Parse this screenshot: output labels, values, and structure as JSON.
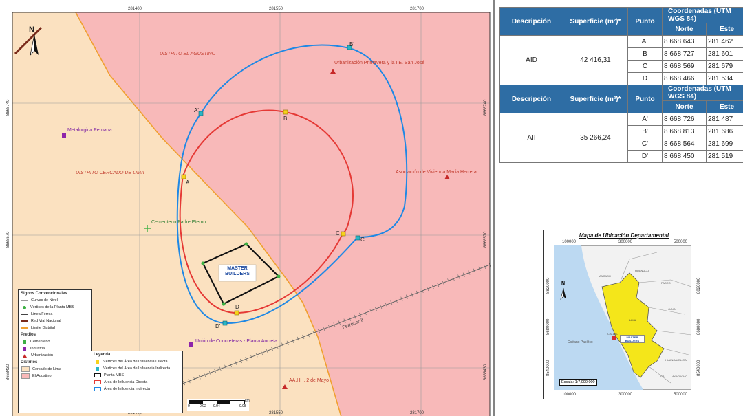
{
  "map": {
    "north_label": "N",
    "x_ticks": [
      "281400",
      "281550",
      "281700"
    ],
    "y_ticks": [
      "8668740",
      "8668570",
      "8668430"
    ],
    "district_labels": {
      "agustino": "DISTRITO EL AGUSTINO",
      "lima": "DISTRITO CERCADO DE LIMA"
    },
    "places": {
      "urbanizacion_primavera": "Urbanización Primavera y la I.E. San José",
      "metalurgica": "Metalurgica Peruana",
      "asociacion": "Asociación de Vivienda María Herrera",
      "cementerio": "Cementerio Padre Eterno",
      "union": "Unión de Concreteras - Planta Ancieta",
      "aahh": "AA.HH. 2 de Mayo",
      "ferrocarril": "Ferrocarril"
    },
    "points": {
      "A": "A",
      "B": "B",
      "C": "C",
      "D": "D",
      "A2": "A'",
      "B2": "B'",
      "C2": "C'",
      "D2": "D'"
    },
    "logo_line1": "MASTER",
    "logo_line2": "BUILDERS",
    "scale_labels": [
      "0",
      "0.02",
      "0.04",
      "0.08"
    ],
    "scale_unit": "km",
    "colors": {
      "agustino_fill": "#f8b9b9",
      "lima_fill": "#fbe1c0",
      "aid_line": "#e53935",
      "aii_line": "#1e88e5",
      "plant_line": "#111111",
      "district_line": "#f0a030"
    }
  },
  "signos": {
    "title": "Signos Convencionales",
    "items": [
      {
        "label": "Curvas de Nivel",
        "icon": "contour-line-icon"
      },
      {
        "label": "Vértices de la Planta MBS",
        "icon": "green-vertex-icon"
      },
      {
        "label": "Línea Férrea",
        "icon": "railway-icon"
      },
      {
        "label": "Red Vial Nacional",
        "icon": "road-icon"
      },
      {
        "label": "Límite Distrital",
        "icon": "district-limit-icon"
      }
    ],
    "predios_title": "Predios",
    "predios": [
      {
        "label": "Cementerio",
        "icon": "cemetery-icon"
      },
      {
        "label": "Industria",
        "icon": "industry-icon"
      },
      {
        "label": "Urbanización",
        "icon": "urbanization-icon"
      }
    ],
    "distritos_title": "Distritos",
    "distritos": [
      {
        "label": "Cercado de Lima",
        "color": "#fbe1c0"
      },
      {
        "label": "El Agustino",
        "color": "#f8b9b9"
      }
    ]
  },
  "leyenda": {
    "title": "Leyenda",
    "items": [
      {
        "label": "Vértices del Área de Influencia Directa",
        "color": "#f7d21b"
      },
      {
        "label": "Vértices del Área de Influencia Indirecta",
        "color": "#29b6c6"
      },
      {
        "label": "Planta MBS",
        "color": "#111111"
      },
      {
        "label": "Área de Influencia Directa",
        "color": "#e53935"
      },
      {
        "label": "Área de Influencia Indirecta",
        "color": "#1e88e5"
      }
    ]
  },
  "table1": {
    "headers": [
      "Descripción",
      "Superficie (m²)*",
      "Punto",
      "Coordenadas (UTM WGS 84)"
    ],
    "subheaders": [
      "Norte",
      "Este"
    ],
    "group": "AID",
    "area": "42 416,31",
    "rows": [
      {
        "punto": "A",
        "norte": "8 668 643",
        "este": "281 462"
      },
      {
        "punto": "B",
        "norte": "8 668 727",
        "este": "281 601"
      },
      {
        "punto": "C",
        "norte": "8 668 569",
        "este": "281 679"
      },
      {
        "punto": "D",
        "norte": "8 668 466",
        "este": "281 534"
      }
    ]
  },
  "table2": {
    "headers": [
      "Descripción",
      "Superficie (m²)*",
      "Punto",
      "Coordenadas (UTM WGS 84)"
    ],
    "subheaders": [
      "Norte",
      "Este"
    ],
    "group": "AII",
    "area": "35 266,24",
    "rows": [
      {
        "punto": "A'",
        "norte": "8 668 726",
        "este": "281 487"
      },
      {
        "punto": "B'",
        "norte": "8 668 813",
        "este": "281 686"
      },
      {
        "punto": "C'",
        "norte": "8 668 564",
        "este": "281 699"
      },
      {
        "punto": "D'",
        "norte": "8 668 450",
        "este": "281 519"
      }
    ]
  },
  "location_map": {
    "title": "Mapa de Ubicación Departamental",
    "x_ticks": [
      "100000",
      "300000",
      "500000"
    ],
    "y_ticks": [
      "8820000",
      "8680000",
      "8540000"
    ],
    "ocean": "Océano Pacífico",
    "regions": [
      "ANCASH",
      "HUANUCO",
      "PASCO",
      "JUNIN",
      "LIMA",
      "CALLAO",
      "ICA",
      "HUANCAVELICA",
      "AYACUCHO"
    ],
    "logo": "MASTER BUILDERS",
    "scale": "Escala: 1:7,000,000",
    "north": "N"
  }
}
